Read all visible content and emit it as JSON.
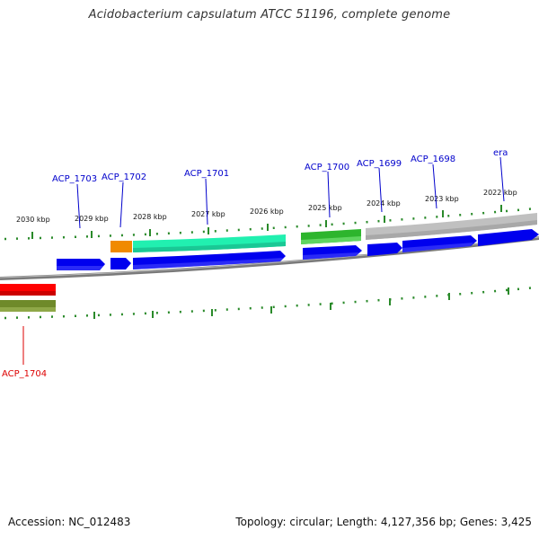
{
  "title": "Acidobacterium capsulatum ATCC 51196, complete genome",
  "footer": {
    "accession": "Accession: NC_012483",
    "topology": "Topology: circular; Length: 4,127,356 bp; Genes: 3,425"
  },
  "colors": {
    "cds_blue": "#0000ee",
    "orange": "#f08a00",
    "aquamarine": "#21f0b0",
    "green": "#2db52d",
    "grey": "#c0c0c0",
    "red": "#ff0000",
    "olive": "#6f8a2a",
    "backbone": "#888888",
    "tick": "#2a8a2a",
    "label_blue": "#0000cc",
    "label_red": "#dd0000"
  },
  "scale_labels": [
    "2030 kbp",
    "2029 kbp",
    "2028 kbp",
    "2027 kbp",
    "2026 kbp",
    "2025 kbp",
    "2024 kbp",
    "2023 kbp",
    "2022 kbp"
  ],
  "gene_labels": [
    {
      "text": "ACP_1703",
      "color": "blue"
    },
    {
      "text": "ACP_1702",
      "color": "blue"
    },
    {
      "text": "ACP_1701",
      "color": "blue"
    },
    {
      "text": "ACP_1700",
      "color": "blue"
    },
    {
      "text": "ACP_1699",
      "color": "blue"
    },
    {
      "text": "ACP_1698",
      "color": "blue"
    },
    {
      "text": "era",
      "color": "blue"
    },
    {
      "text": "ACP_1704",
      "color": "red"
    }
  ]
}
